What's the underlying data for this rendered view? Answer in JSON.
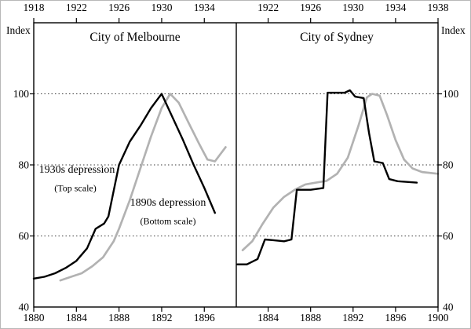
{
  "chart_data": {
    "type": "line",
    "ylabel": "Index",
    "ylim": [
      40,
      120
    ],
    "yticks": [
      40,
      60,
      80,
      100
    ],
    "gridlines": [
      60,
      80,
      100
    ],
    "grid": "horizontal-dotted",
    "colors": {
      "black_series": "#000000",
      "gray_series": "#b2b2b2"
    },
    "panels": [
      {
        "title": "City of Melbourne",
        "bottom_axis": {
          "domain": [
            1880,
            1899
          ],
          "label_years": [
            1880,
            1884,
            1888,
            1892,
            1896
          ]
        },
        "top_axis": {
          "domain": [
            1918,
            1937
          ],
          "label_years": [
            1918,
            1922,
            1926,
            1930,
            1934
          ]
        },
        "series": [
          {
            "name": "1930s depression (Top scale)",
            "scale": "top",
            "color": "#b2b2b2",
            "stroke_width": 2.7,
            "points": [
              [
                1920.5,
                47.5
              ],
              [
                1921.5,
                48.5
              ],
              [
                1922.5,
                49.5
              ],
              [
                1923.5,
                51.5
              ],
              [
                1924.5,
                54
              ],
              [
                1925.5,
                58.5
              ],
              [
                1926,
                62
              ],
              [
                1927,
                70
              ],
              [
                1928,
                79
              ],
              [
                1929,
                88
              ],
              [
                1930,
                96
              ],
              [
                1930.8,
                100
              ],
              [
                1931.6,
                97.5
              ],
              [
                1932.5,
                92
              ],
              [
                1933.5,
                86
              ],
              [
                1934.3,
                81.5
              ],
              [
                1935,
                81
              ],
              [
                1936,
                85
              ]
            ]
          },
          {
            "name": "1890s depression (Bottom scale)",
            "scale": "bottom",
            "color": "#000000",
            "stroke_width": 2.4,
            "points": [
              [
                1880,
                48
              ],
              [
                1881,
                48.5
              ],
              [
                1882,
                49.5
              ],
              [
                1883,
                51
              ],
              [
                1884,
                53
              ],
              [
                1885,
                56.5
              ],
              [
                1885.8,
                62
              ],
              [
                1886.6,
                63.5
              ],
              [
                1887,
                65.5
              ],
              [
                1888,
                80
              ],
              [
                1889,
                86.5
              ],
              [
                1890,
                91
              ],
              [
                1891,
                96
              ],
              [
                1892,
                100
              ],
              [
                1893,
                93.5
              ],
              [
                1894,
                87
              ],
              [
                1895,
                80
              ],
              [
                1896,
                73.5
              ],
              [
                1897,
                66.5
              ]
            ]
          }
        ],
        "annotations": [
          {
            "text": "1930s depression",
            "sub": "(Top scale)"
          },
          {
            "text": "1890s depression",
            "sub": "(Bottom scale)"
          }
        ]
      },
      {
        "title": "City of Sydney",
        "bottom_axis": {
          "domain": [
            1881,
            1900
          ],
          "label_years": [
            1884,
            1888,
            1892,
            1896,
            1900
          ]
        },
        "top_axis": {
          "domain": [
            1919,
            1938
          ],
          "label_years": [
            1922,
            1926,
            1930,
            1934,
            1938
          ]
        },
        "series": [
          {
            "name": "1930s depression (Top scale)",
            "scale": "top",
            "color": "#b2b2b2",
            "stroke_width": 2.7,
            "points": [
              [
                1919.6,
                56
              ],
              [
                1920.5,
                58.5
              ],
              [
                1921.5,
                63.5
              ],
              [
                1922.5,
                68
              ],
              [
                1923.5,
                71
              ],
              [
                1924.5,
                73
              ],
              [
                1925.5,
                74.5
              ],
              [
                1926.5,
                75
              ],
              [
                1927.5,
                75.5
              ],
              [
                1928.5,
                77.5
              ],
              [
                1929.5,
                82
              ],
              [
                1930.5,
                91
              ],
              [
                1931.3,
                99
              ],
              [
                1931.8,
                100
              ],
              [
                1932.5,
                99.5
              ],
              [
                1933.2,
                94
              ],
              [
                1934,
                87
              ],
              [
                1934.8,
                81.5
              ],
              [
                1935.6,
                79
              ],
              [
                1936.5,
                78
              ],
              [
                1938,
                77.5
              ]
            ]
          },
          {
            "name": "1890s depression (Bottom scale)",
            "scale": "bottom",
            "color": "#000000",
            "stroke_width": 2.4,
            "points": [
              [
                1881.1,
                52
              ],
              [
                1882,
                52
              ],
              [
                1883,
                53.5
              ],
              [
                1883.7,
                59
              ],
              [
                1884.5,
                58.8
              ],
              [
                1885.5,
                58.5
              ],
              [
                1886.2,
                59
              ],
              [
                1886.7,
                73
              ],
              [
                1888,
                73
              ],
              [
                1889.2,
                73.5
              ],
              [
                1889.6,
                100.3
              ],
              [
                1891.2,
                100.3
              ],
              [
                1891.7,
                101
              ],
              [
                1892.2,
                99.2
              ],
              [
                1893,
                98.8
              ],
              [
                1893.5,
                89
              ],
              [
                1894,
                81
              ],
              [
                1894.8,
                80.5
              ],
              [
                1895.4,
                76
              ],
              [
                1896.2,
                75.4
              ],
              [
                1898,
                75
              ]
            ]
          }
        ],
        "annotations": []
      }
    ]
  }
}
